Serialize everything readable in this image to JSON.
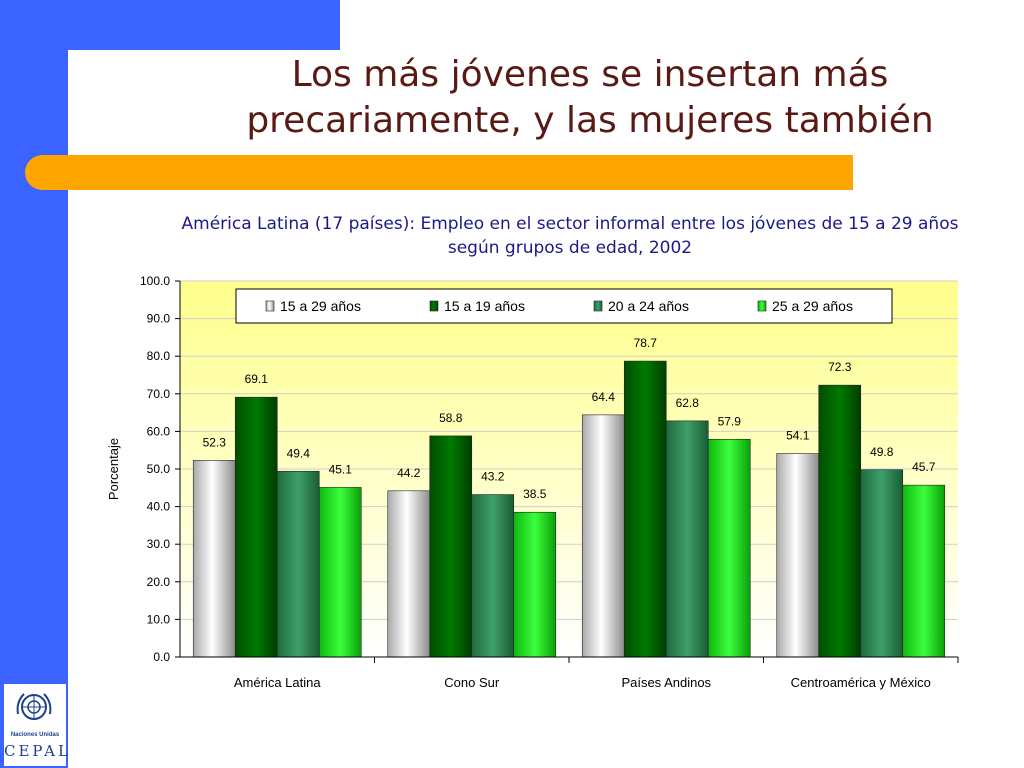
{
  "slide": {
    "title": "Los más jóvenes se insertan más precariamente, y las mujeres también",
    "subtitle": "América Latina (17 países): Empleo en el sector informal entre los jóvenes de 15 a 29 años según grupos de edad, 2002",
    "logo_top": "Naciones Unidas",
    "logo_bottom": "CEPAL",
    "colors": {
      "accent_blue": "#3a63ff",
      "accent_orange": "#ffa500",
      "title": "#5a1a14",
      "subtitle": "#1a1a88"
    }
  },
  "chart_data": {
    "type": "bar",
    "title": "",
    "xlabel": "",
    "ylabel": "Porcentaje",
    "ylim": [
      0,
      100
    ],
    "yticks": [
      "0.0",
      "10.0",
      "20.0",
      "30.0",
      "40.0",
      "50.0",
      "60.0",
      "70.0",
      "80.0",
      "90.0",
      "100.0"
    ],
    "categories": [
      "América Latina",
      "Cono Sur",
      "Países Andinos",
      "Centroamérica y México"
    ],
    "legend_position": "top",
    "series": [
      {
        "name": "15 a 29 años",
        "values": [
          52.3,
          44.2,
          64.4,
          54.1
        ],
        "color": "#d6d6d6"
      },
      {
        "name": "15 a 19 años",
        "values": [
          69.1,
          58.8,
          78.7,
          72.3
        ],
        "color": "#006400"
      },
      {
        "name": "20 a 24 años",
        "values": [
          49.4,
          43.2,
          62.8,
          49.8
        ],
        "color": "#2e8b57"
      },
      {
        "name": "25 a 29 años",
        "values": [
          45.1,
          38.5,
          57.9,
          45.7
        ],
        "color": "#1ad81a"
      }
    ]
  }
}
